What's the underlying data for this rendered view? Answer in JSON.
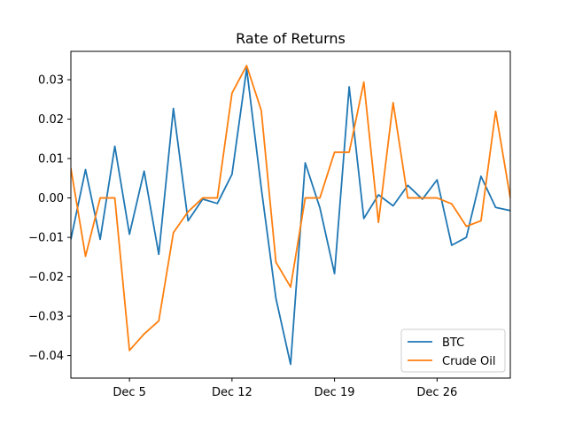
{
  "chart_data": {
    "type": "line",
    "title": "Rate of Returns",
    "xlabel": "",
    "ylabel": "",
    "x_tick_labels": [
      "Dec 5",
      "Dec 12",
      "Dec 19",
      "Dec 26"
    ],
    "x_tick_days": [
      5,
      12,
      19,
      26
    ],
    "xlim": [
      1,
      31
    ],
    "y_ticks": [
      -0.04,
      -0.03,
      -0.02,
      -0.01,
      0.0,
      0.01,
      0.02,
      0.03
    ],
    "y_tick_labels": [
      "−0.04",
      "−0.03",
      "−0.02",
      "−0.01",
      "0.00",
      "0.01",
      "0.02",
      "0.03"
    ],
    "ylim": [
      -0.0457,
      0.0372
    ],
    "grid": false,
    "legend_position": "bottom-right",
    "series": [
      {
        "name": "BTC",
        "color": "#1f77b4",
        "x": [
          1,
          2,
          3,
          4,
          5,
          6,
          7,
          8,
          9,
          10,
          11,
          12,
          13,
          14,
          15,
          16,
          17,
          18,
          19,
          20,
          21,
          22,
          23,
          24,
          25,
          26,
          27,
          28,
          29,
          30,
          31
        ],
        "values": [
          -0.0105,
          0.0072,
          -0.0105,
          0.0131,
          -0.0092,
          0.0068,
          -0.0143,
          0.0227,
          -0.0058,
          -0.0003,
          -0.0014,
          0.006,
          0.0328,
          0.0025,
          -0.0255,
          -0.0422,
          0.0089,
          -0.0025,
          -0.0192,
          0.0282,
          -0.0052,
          0.0008,
          -0.002,
          0.0032,
          -0.0003,
          0.0046,
          -0.012,
          -0.01,
          0.0055,
          -0.0024,
          -0.0032
        ]
      },
      {
        "name": "Crude Oil",
        "color": "#ff7f0e",
        "x": [
          1,
          2,
          3,
          4,
          5,
          6,
          7,
          8,
          9,
          10,
          11,
          12,
          13,
          14,
          15,
          16,
          17,
          18,
          19,
          20,
          21,
          22,
          23,
          24,
          25,
          26,
          27,
          28,
          29,
          30,
          31
        ],
        "values": [
          0.0075,
          -0.0148,
          0.0,
          0.0,
          -0.0387,
          -0.0345,
          -0.0312,
          -0.0088,
          -0.0035,
          0.0,
          0.0,
          0.0266,
          0.0336,
          0.0222,
          -0.0163,
          -0.0226,
          0.0,
          0.0,
          0.0116,
          0.0116,
          0.0294,
          -0.0062,
          0.0242,
          0.0,
          0.0,
          0.0,
          -0.0015,
          -0.0072,
          -0.0058,
          0.022,
          0.0
        ]
      }
    ]
  }
}
